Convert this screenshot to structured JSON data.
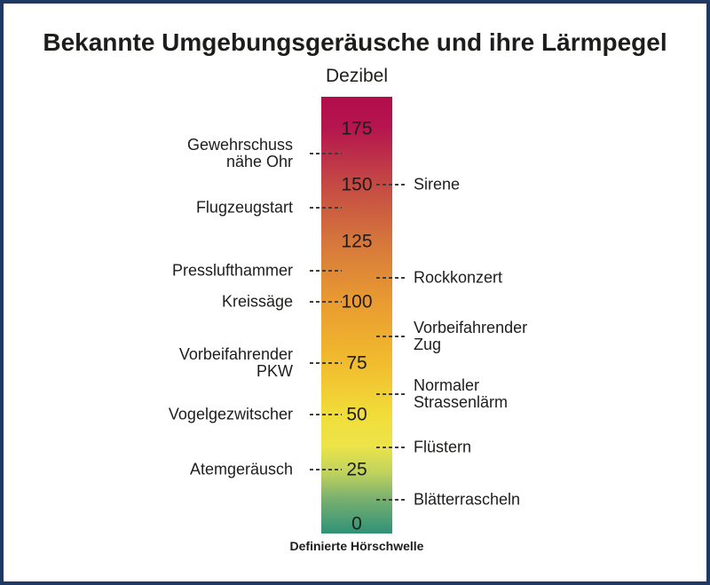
{
  "frame": {
    "border_color": "#1f3864",
    "background_color": "#ffffff",
    "text_color": "#1d1d1b"
  },
  "title": "Bekannte Umgebungsgeräusche und ihre Lärmpegel",
  "chart_data": {
    "type": "scale",
    "title": "Bekannte Umgebungsgeräusche und ihre Lärmpegel",
    "axis_label": "Dezibel",
    "unit": "dB",
    "axis_ticks": [
      175,
      150,
      125,
      100,
      75,
      50,
      25,
      0
    ],
    "axis_range": [
      0,
      175
    ],
    "footnote": "Definierte Hörschwelle",
    "left_items": [
      {
        "label": "Gewehrschuss\nnähe Ohr",
        "db": 164
      },
      {
        "label": "Flugzeugstart",
        "db": 140
      },
      {
        "label": "Presslufthammer",
        "db": 113
      },
      {
        "label": "Kreissäge",
        "db": 100
      },
      {
        "label": "Vorbeifahrender\nPKW",
        "db": 75
      },
      {
        "label": "Vogelgezwitscher",
        "db": 50
      },
      {
        "label": "Atemgeräusch",
        "db": 25
      }
    ],
    "right_items": [
      {
        "label": "Sirene",
        "db": 150
      },
      {
        "label": "Rockkonzert",
        "db": 110
      },
      {
        "label": "Vorbeifahrender\nZug",
        "db": 86
      },
      {
        "label": "Normaler\nStrassenlärm",
        "db": 60
      },
      {
        "label": "Flüstern",
        "db": 35
      },
      {
        "label": "Blätterrascheln",
        "db": 11
      }
    ],
    "gradient_stops": [
      {
        "pos": 0,
        "color": "#b30d4c"
      },
      {
        "pos": 7,
        "color": "#b5154e"
      },
      {
        "pos": 20,
        "color": "#c44944"
      },
      {
        "pos": 33,
        "color": "#d5763c"
      },
      {
        "pos": 47,
        "color": "#e99b31"
      },
      {
        "pos": 61,
        "color": "#f1bc2e"
      },
      {
        "pos": 73,
        "color": "#f1dd3a"
      },
      {
        "pos": 80,
        "color": "#ece44a"
      },
      {
        "pos": 86,
        "color": "#c0d35c"
      },
      {
        "pos": 92,
        "color": "#79b06f"
      },
      {
        "pos": 100,
        "color": "#2f9277"
      }
    ]
  }
}
